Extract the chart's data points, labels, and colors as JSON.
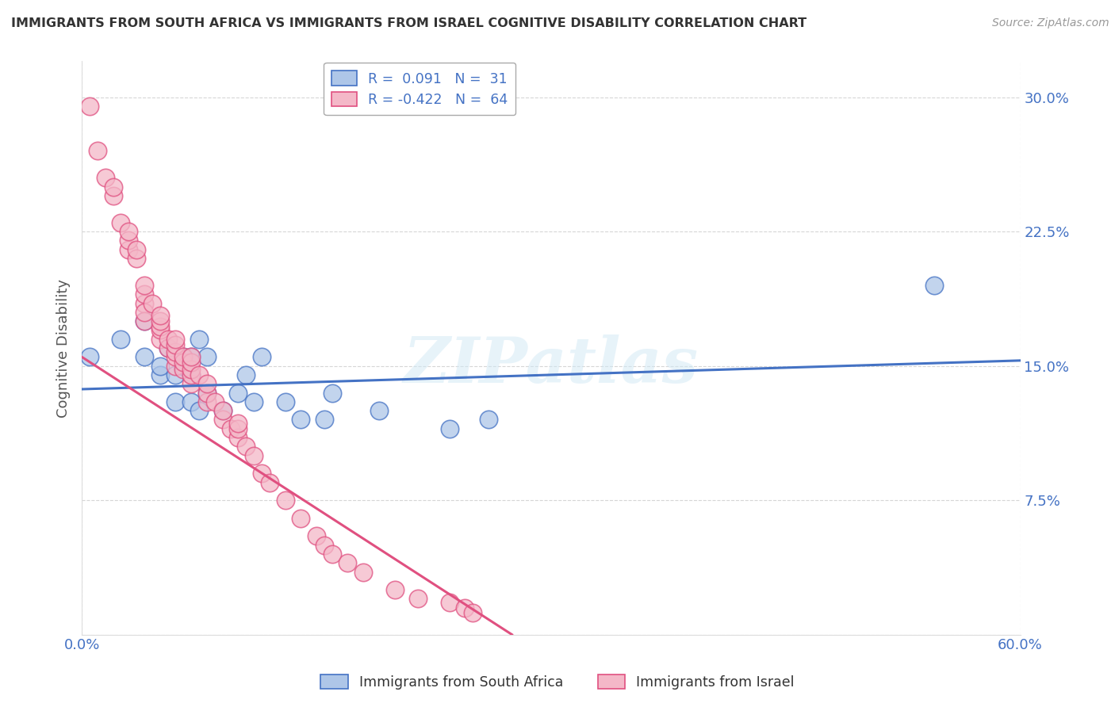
{
  "title": "IMMIGRANTS FROM SOUTH AFRICA VS IMMIGRANTS FROM ISRAEL COGNITIVE DISABILITY CORRELATION CHART",
  "source": "Source: ZipAtlas.com",
  "ylabel": "Cognitive Disability",
  "yticks": [
    0.0,
    0.075,
    0.15,
    0.225,
    0.3
  ],
  "ytick_labels": [
    "",
    "7.5%",
    "15.0%",
    "22.5%",
    "30.0%"
  ],
  "xlim": [
    0.0,
    0.6
  ],
  "ylim": [
    0.0,
    0.32
  ],
  "series1_name": "Immigrants from South Africa",
  "series1_R": "0.091",
  "series1_N": "31",
  "series1_color": "#aec6e8",
  "series1_line_color": "#4472c4",
  "series2_name": "Immigrants from Israel",
  "series2_R": "-0.422",
  "series2_N": "64",
  "series2_color": "#f4b8c8",
  "series2_line_color": "#e05080",
  "watermark_text": "ZIPatlas",
  "background_color": "#ffffff",
  "grid_color": "#cccccc",
  "tick_color": "#4472c4",
  "series1_x": [
    0.005,
    0.025,
    0.04,
    0.04,
    0.05,
    0.05,
    0.055,
    0.06,
    0.06,
    0.065,
    0.065,
    0.07,
    0.07,
    0.07,
    0.075,
    0.075,
    0.08,
    0.08,
    0.09,
    0.1,
    0.105,
    0.11,
    0.115,
    0.13,
    0.14,
    0.155,
    0.16,
    0.19,
    0.235,
    0.26,
    0.545
  ],
  "series1_y": [
    0.155,
    0.165,
    0.155,
    0.175,
    0.145,
    0.15,
    0.16,
    0.13,
    0.145,
    0.15,
    0.155,
    0.13,
    0.145,
    0.155,
    0.165,
    0.125,
    0.135,
    0.155,
    0.125,
    0.135,
    0.145,
    0.13,
    0.155,
    0.13,
    0.12,
    0.12,
    0.135,
    0.125,
    0.115,
    0.12,
    0.195
  ],
  "series2_x": [
    0.005,
    0.01,
    0.015,
    0.02,
    0.02,
    0.025,
    0.03,
    0.03,
    0.03,
    0.035,
    0.035,
    0.04,
    0.04,
    0.04,
    0.04,
    0.04,
    0.045,
    0.05,
    0.05,
    0.05,
    0.05,
    0.05,
    0.055,
    0.055,
    0.06,
    0.06,
    0.06,
    0.06,
    0.06,
    0.065,
    0.065,
    0.065,
    0.07,
    0.07,
    0.07,
    0.07,
    0.07,
    0.075,
    0.08,
    0.08,
    0.08,
    0.085,
    0.09,
    0.09,
    0.095,
    0.1,
    0.1,
    0.1,
    0.105,
    0.11,
    0.115,
    0.12,
    0.13,
    0.14,
    0.15,
    0.155,
    0.16,
    0.17,
    0.18,
    0.2,
    0.215,
    0.235,
    0.245,
    0.25
  ],
  "series2_y": [
    0.295,
    0.27,
    0.255,
    0.245,
    0.25,
    0.23,
    0.215,
    0.22,
    0.225,
    0.21,
    0.215,
    0.185,
    0.19,
    0.195,
    0.175,
    0.18,
    0.185,
    0.165,
    0.17,
    0.172,
    0.175,
    0.178,
    0.16,
    0.165,
    0.15,
    0.155,
    0.158,
    0.162,
    0.165,
    0.148,
    0.152,
    0.155,
    0.14,
    0.145,
    0.148,
    0.152,
    0.155,
    0.145,
    0.13,
    0.135,
    0.14,
    0.13,
    0.12,
    0.125,
    0.115,
    0.11,
    0.115,
    0.118,
    0.105,
    0.1,
    0.09,
    0.085,
    0.075,
    0.065,
    0.055,
    0.05,
    0.045,
    0.04,
    0.035,
    0.025,
    0.02,
    0.018,
    0.015,
    0.012
  ],
  "line1_x0": 0.0,
  "line1_x1": 0.6,
  "line1_y0": 0.137,
  "line1_y1": 0.153,
  "line2_x0": 0.0,
  "line2_x1": 0.275,
  "line2_y0": 0.155,
  "line2_y1": 0.0
}
